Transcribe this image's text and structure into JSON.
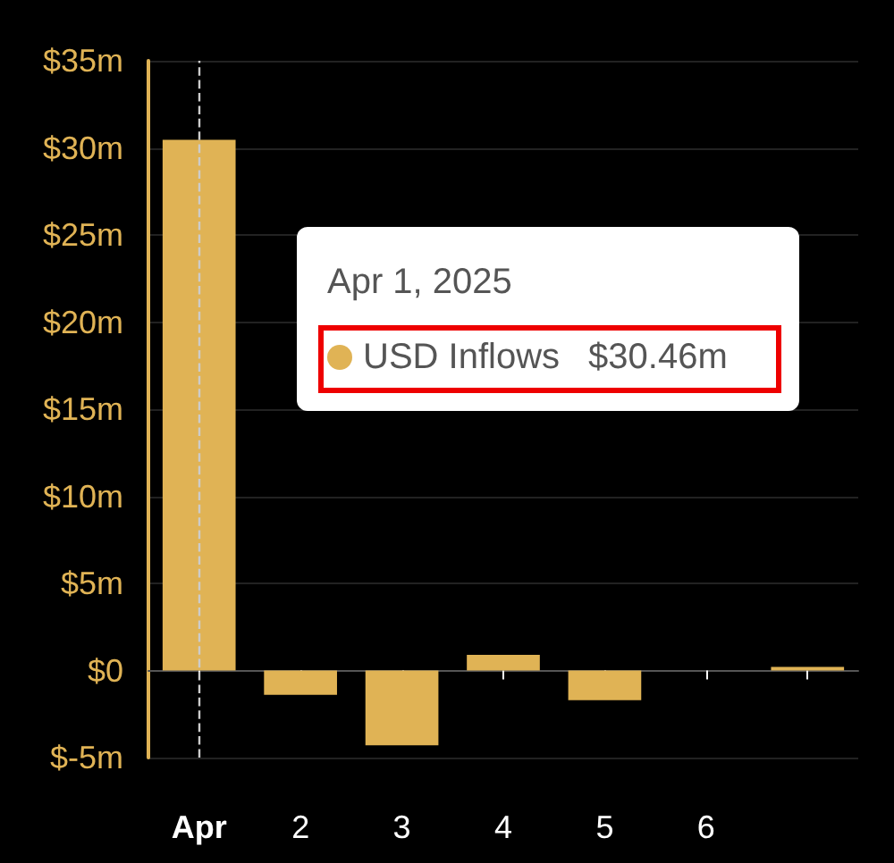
{
  "chart_data": {
    "type": "bar",
    "categories": [
      "Apr",
      "2",
      "3",
      "4",
      "5",
      "6",
      null
    ],
    "series": [
      {
        "name": "USD Inflows",
        "color": "#e0b355",
        "values": [
          30.46,
          -1.4,
          -4.3,
          0.9,
          -1.7,
          null,
          0.2
        ]
      }
    ],
    "ylim": [
      -5,
      35
    ],
    "yticks": [
      {
        "value": -5,
        "label": "$-5m"
      },
      {
        "value": 0,
        "label": "$0"
      },
      {
        "value": 5,
        "label": "$5m"
      },
      {
        "value": 10,
        "label": "$10m"
      },
      {
        "value": 15,
        "label": "$15m"
      },
      {
        "value": 20,
        "label": "$20m"
      },
      {
        "value": 25,
        "label": "$25m"
      },
      {
        "value": 30,
        "label": "$30m"
      },
      {
        "value": 35,
        "label": "$35m"
      }
    ],
    "grid": "y",
    "legend": "top left",
    "ref_lines": [
      {
        "axis": "x",
        "value": "Apr",
        "color": "#cccccc",
        "line_style": "dashed"
      }
    ],
    "annotations": [
      "Apr 1, 2025",
      "$30.46m"
    ]
  }
}
